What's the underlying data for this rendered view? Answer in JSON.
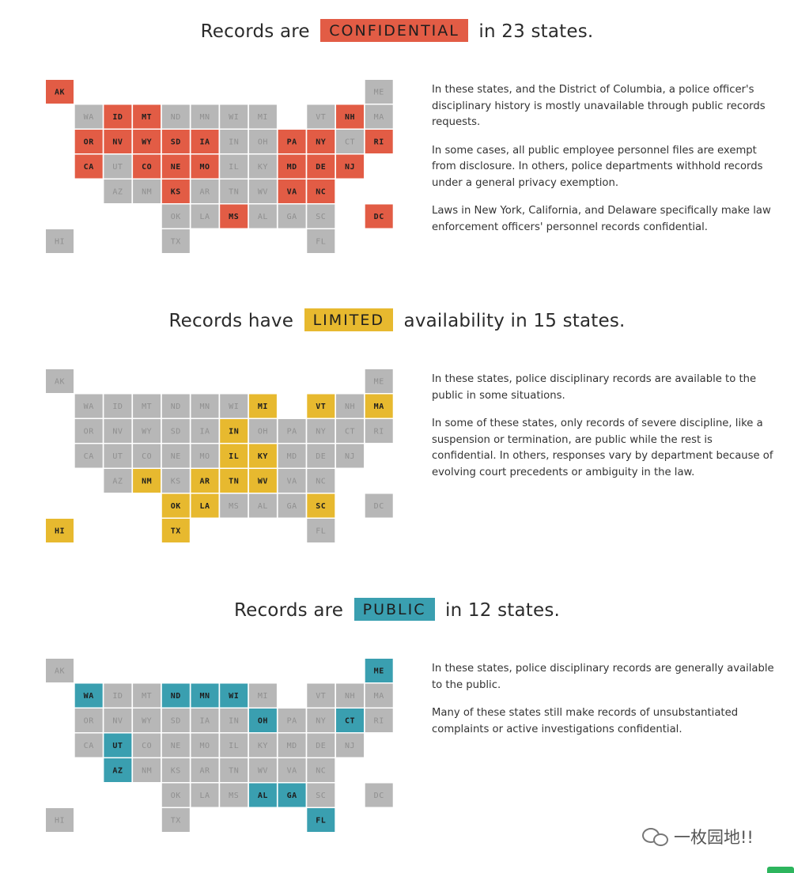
{
  "colors": {
    "confidential": "#e25c45",
    "limited": "#e7b92f",
    "public": "#3a9fb0",
    "inactive": "#b7b7b7",
    "label_active": "#1e1e1e",
    "label_inactive": "#8f8f8f"
  },
  "chart_data": [
    {
      "type": "table",
      "title_parts": {
        "prefix": "Records are",
        "badge": "CONFIDENTIAL",
        "suffix": "in 23 states."
      },
      "color_key": "confidential",
      "highlighted": [
        "AK",
        "ID",
        "MT",
        "NH",
        "OR",
        "NV",
        "WY",
        "SD",
        "IA",
        "PA",
        "NY",
        "RI",
        "CA",
        "CO",
        "NE",
        "MO",
        "MD",
        "DE",
        "NJ",
        "KS",
        "VA",
        "NC",
        "MS",
        "DC"
      ],
      "description": [
        "In these states, and the District of Columbia, a police officer's disciplinary history is mostly unavailable through public records requests.",
        "In some cases, all public employee personnel files are exempt from disclosure. In others, police departments withhold records under a general privacy exemption.",
        "Laws in New York, California, and Delaware specifically make law enforcement officers' personnel records confidential."
      ]
    },
    {
      "type": "table",
      "title_parts": {
        "prefix": "Records have",
        "badge": "LIMITED",
        "suffix": "availability in 15 states."
      },
      "color_key": "limited",
      "highlighted": [
        "MI",
        "VT",
        "MA",
        "IN",
        "IL",
        "KY",
        "NM",
        "AR",
        "TN",
        "WV",
        "OK",
        "LA",
        "SC",
        "HI",
        "TX"
      ],
      "description": [
        "In these states, police disciplinary records are available to the public in some situations.",
        "In some of these states, only records of severe discipline, like a suspension or termination, are public while the rest is confidential. In others, responses vary by department because of evolving court precedents or ambiguity in the law."
      ]
    },
    {
      "type": "table",
      "title_parts": {
        "prefix": "Records are",
        "badge": "PUBLIC",
        "suffix": "in 12 states."
      },
      "color_key": "public",
      "highlighted": [
        "ME",
        "WA",
        "ND",
        "MN",
        "WI",
        "OH",
        "CT",
        "UT",
        "AZ",
        "AL",
        "GA",
        "FL"
      ],
      "description": [
        "In these states, police disciplinary records are generally available to the public.",
        "Many of these states still make records of unsubstantiated complaints or active investigations confidential."
      ]
    }
  ],
  "tile_map": [
    {
      "state": "AK",
      "col": 0,
      "row": 0
    },
    {
      "state": "ME",
      "col": 11,
      "row": 0
    },
    {
      "state": "WA",
      "col": 1,
      "row": 1
    },
    {
      "state": "ID",
      "col": 2,
      "row": 1
    },
    {
      "state": "MT",
      "col": 3,
      "row": 1
    },
    {
      "state": "ND",
      "col": 4,
      "row": 1
    },
    {
      "state": "MN",
      "col": 5,
      "row": 1
    },
    {
      "state": "WI",
      "col": 6,
      "row": 1
    },
    {
      "state": "MI",
      "col": 7,
      "row": 1
    },
    {
      "state": "VT",
      "col": 9,
      "row": 1
    },
    {
      "state": "NH",
      "col": 10,
      "row": 1
    },
    {
      "state": "MA",
      "col": 11,
      "row": 1
    },
    {
      "state": "OR",
      "col": 1,
      "row": 2
    },
    {
      "state": "NV",
      "col": 2,
      "row": 2
    },
    {
      "state": "WY",
      "col": 3,
      "row": 2
    },
    {
      "state": "SD",
      "col": 4,
      "row": 2
    },
    {
      "state": "IA",
      "col": 5,
      "row": 2
    },
    {
      "state": "IN",
      "col": 6,
      "row": 2
    },
    {
      "state": "OH",
      "col": 7,
      "row": 2
    },
    {
      "state": "PA",
      "col": 8,
      "row": 2
    },
    {
      "state": "NY",
      "col": 9,
      "row": 2
    },
    {
      "state": "CT",
      "col": 10,
      "row": 2
    },
    {
      "state": "RI",
      "col": 11,
      "row": 2
    },
    {
      "state": "CA",
      "col": 1,
      "row": 3
    },
    {
      "state": "UT",
      "col": 2,
      "row": 3
    },
    {
      "state": "CO",
      "col": 3,
      "row": 3
    },
    {
      "state": "NE",
      "col": 4,
      "row": 3
    },
    {
      "state": "MO",
      "col": 5,
      "row": 3
    },
    {
      "state": "IL",
      "col": 6,
      "row": 3
    },
    {
      "state": "KY",
      "col": 7,
      "row": 3
    },
    {
      "state": "MD",
      "col": 8,
      "row": 3
    },
    {
      "state": "DE",
      "col": 9,
      "row": 3
    },
    {
      "state": "NJ",
      "col": 10,
      "row": 3
    },
    {
      "state": "AZ",
      "col": 2,
      "row": 4
    },
    {
      "state": "NM",
      "col": 3,
      "row": 4
    },
    {
      "state": "KS",
      "col": 4,
      "row": 4
    },
    {
      "state": "AR",
      "col": 5,
      "row": 4
    },
    {
      "state": "TN",
      "col": 6,
      "row": 4
    },
    {
      "state": "WV",
      "col": 7,
      "row": 4
    },
    {
      "state": "VA",
      "col": 8,
      "row": 4
    },
    {
      "state": "NC",
      "col": 9,
      "row": 4
    },
    {
      "state": "OK",
      "col": 4,
      "row": 5
    },
    {
      "state": "LA",
      "col": 5,
      "row": 5
    },
    {
      "state": "MS",
      "col": 6,
      "row": 5
    },
    {
      "state": "AL",
      "col": 7,
      "row": 5
    },
    {
      "state": "GA",
      "col": 8,
      "row": 5
    },
    {
      "state": "SC",
      "col": 9,
      "row": 5
    },
    {
      "state": "DC",
      "col": 11,
      "row": 5
    },
    {
      "state": "HI",
      "col": 0,
      "row": 6
    },
    {
      "state": "TX",
      "col": 4,
      "row": 6
    },
    {
      "state": "FL",
      "col": 9,
      "row": 6
    }
  ],
  "watermark": "一枚园地!!"
}
